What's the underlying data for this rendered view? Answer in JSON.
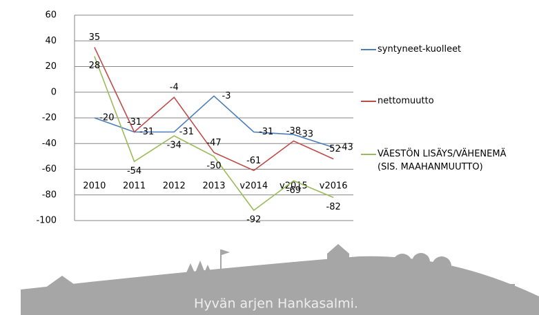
{
  "chart_data": {
    "type": "line",
    "categories": [
      "2010",
      "2011",
      "2012",
      "2013",
      "v2014",
      "v2015",
      "v2016"
    ],
    "series": [
      {
        "name": "syntyneet-kuolleet",
        "color": "#4a7ebb",
        "values": [
          -20,
          -31,
          -31,
          -3,
          -31,
          -33,
          -43
        ]
      },
      {
        "name": "nettomuutto",
        "color": "#be4b48",
        "values": [
          35,
          -31,
          -4,
          -47,
          -61,
          -38,
          -52
        ]
      },
      {
        "name": "VÄESTÖN LISÄYS/VÄHENEMÄ (SIS. MAAHANMUUTTO)",
        "color": "#9bbb59",
        "values": [
          28,
          -54,
          -34,
          -50,
          -92,
          -69,
          -82
        ]
      }
    ],
    "ylim": [
      -100,
      60
    ],
    "yticks": [
      -100,
      -80,
      -60,
      -40,
      -20,
      0,
      20,
      40,
      60
    ],
    "grid": true
  },
  "footer": {
    "text": "Hyvän arjen Hankasalmi."
  }
}
